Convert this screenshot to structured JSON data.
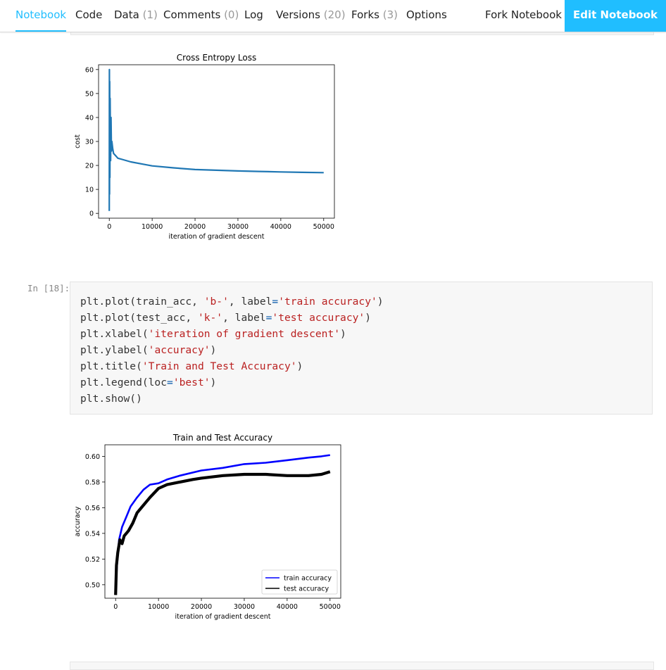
{
  "nav": {
    "tabs": [
      {
        "label": "Notebook",
        "count": "",
        "active": true
      },
      {
        "label": "Code",
        "count": ""
      },
      {
        "label": "Data",
        "count": "(1)"
      },
      {
        "label": "Comments",
        "count": "(0)"
      },
      {
        "label": "Log",
        "count": ""
      },
      {
        "label": "Versions",
        "count": "(20)"
      },
      {
        "label": "Forks",
        "count": "(3)"
      },
      {
        "label": "Options",
        "count": ""
      }
    ],
    "fork_label": "Fork Notebook",
    "edit_label": "Edit Notebook"
  },
  "colors": {
    "accent": "#20beff",
    "loss_line": "#1f77b4",
    "train": "#0000ff",
    "test": "#000000"
  },
  "cell": {
    "prompt": "In [18]:",
    "code_lines": [
      "plt.plot(train_acc, 'b-', label='train accuracy')",
      "plt.plot(test_acc, 'k-', label='test accuracy')",
      "plt.xlabel('iteration of gradient descent')",
      "plt.ylabel('accuracy')",
      "plt.title('Train and Test Accuracy')",
      "plt.legend(loc='best')",
      "plt.show()"
    ]
  },
  "chart_data": [
    {
      "type": "line",
      "title": "Cross Entropy Loss",
      "xlabel": "iteration of gradient descent",
      "ylabel": "cost",
      "xlim": [
        -2500,
        52500
      ],
      "ylim": [
        -2,
        62
      ],
      "xticks": [
        0,
        10000,
        20000,
        30000,
        40000,
        50000
      ],
      "yticks": [
        0,
        10,
        20,
        30,
        40,
        50,
        60
      ],
      "grid": false,
      "series": [
        {
          "color": "#1f77b4",
          "x": [
            0,
            30,
            60,
            100,
            150,
            200,
            300,
            400,
            500,
            600,
            800,
            1000,
            1500,
            2000,
            3000,
            5000,
            8000,
            10000,
            15000,
            20000,
            25000,
            30000,
            35000,
            40000,
            45000,
            50000
          ],
          "y": [
            1,
            60,
            8,
            55,
            15,
            48,
            22,
            40,
            26,
            30,
            27,
            25,
            24,
            23,
            22.5,
            21.5,
            20.5,
            19.8,
            19,
            18.3,
            18,
            17.7,
            17.5,
            17.3,
            17.1,
            17
          ]
        }
      ]
    },
    {
      "type": "line",
      "title": "Train and Test Accuracy",
      "xlabel": "iteration of gradient descent",
      "ylabel": "accuracy",
      "xlim": [
        -2500,
        52500
      ],
      "ylim": [
        0.4895,
        0.609
      ],
      "xticks": [
        0,
        10000,
        20000,
        30000,
        40000,
        50000
      ],
      "yticks": [
        0.5,
        0.52,
        0.54,
        0.56,
        0.58,
        0.6
      ],
      "legend": "lower-right",
      "grid": false,
      "series": [
        {
          "name": "train accuracy",
          "color": "#0000ff",
          "x": [
            0,
            300,
            800,
            1500,
            2500,
            3500,
            5000,
            6500,
            8000,
            10000,
            12000,
            15000,
            20000,
            25000,
            30000,
            35000,
            40000,
            45000,
            48000,
            50000
          ],
          "y": [
            0.495,
            0.515,
            0.535,
            0.545,
            0.553,
            0.561,
            0.568,
            0.574,
            0.578,
            0.579,
            0.582,
            0.585,
            0.589,
            0.591,
            0.594,
            0.595,
            0.597,
            0.599,
            0.6,
            0.601
          ]
        },
        {
          "name": "test accuracy",
          "color": "#000000",
          "x": [
            0,
            200,
            500,
            1000,
            1500,
            2000,
            3000,
            4000,
            5000,
            6000,
            8000,
            10000,
            12000,
            15000,
            18000,
            20000,
            25000,
            30000,
            35000,
            40000,
            45000,
            48000,
            50000
          ],
          "y": [
            0.492,
            0.515,
            0.525,
            0.535,
            0.532,
            0.538,
            0.542,
            0.548,
            0.556,
            0.56,
            0.568,
            0.575,
            0.578,
            0.58,
            0.582,
            0.583,
            0.585,
            0.586,
            0.586,
            0.585,
            0.585,
            0.586,
            0.588
          ]
        }
      ]
    }
  ]
}
